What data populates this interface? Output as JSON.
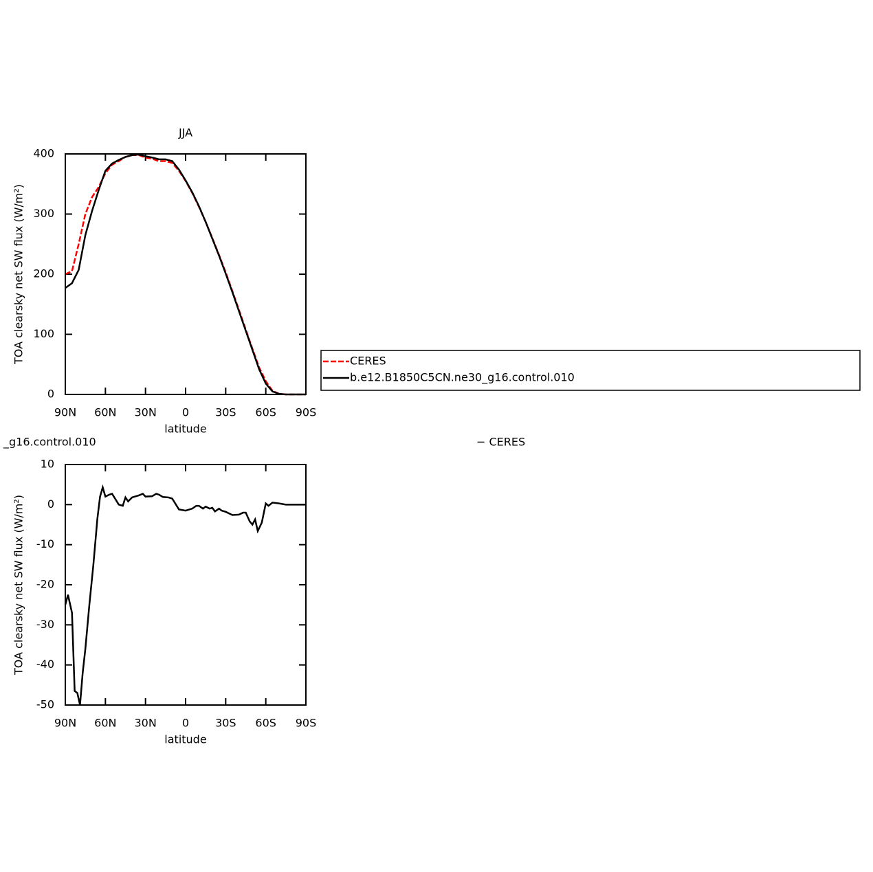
{
  "chart_data": [
    {
      "type": "line",
      "title": "JJA",
      "xlabel": "latitude",
      "ylabel": "TOA clearsky net SW flux (W/m²)",
      "x": [
        90,
        85,
        80,
        75,
        70,
        65,
        60,
        55,
        50,
        45,
        40,
        35,
        30,
        25,
        20,
        15,
        10,
        5,
        0,
        -5,
        -10,
        -15,
        -20,
        -25,
        -30,
        -35,
        -40,
        -45,
        -50,
        -55,
        -60,
        -65,
        -70,
        -75,
        -80,
        -85,
        -90
      ],
      "series": [
        {
          "name": "CERES",
          "color": "#ff0000",
          "linestyle": "dashed",
          "values": [
            200,
            205,
            250,
            300,
            328,
            345,
            368,
            382,
            388,
            395,
            398,
            398,
            394,
            392,
            388,
            388,
            385,
            372,
            355,
            335,
            312,
            287,
            260,
            232,
            203,
            172,
            140,
            108,
            76,
            45,
            22,
            6,
            1,
            0,
            0,
            0,
            0
          ]
        },
        {
          "name": "b.e12.B1850C5CN.ne30_g16.control.010",
          "color": "#000000",
          "linestyle": "solid",
          "values": [
            177,
            185,
            207,
            265,
            305,
            340,
            372,
            384,
            390,
            395,
            398,
            399,
            396,
            394,
            391,
            391,
            388,
            374,
            356,
            336,
            313,
            287,
            259,
            231,
            201,
            170,
            138,
            106,
            74,
            42,
            18,
            5,
            1,
            0,
            0,
            0,
            0
          ]
        }
      ],
      "xlim": [
        90,
        -90
      ],
      "xticks": [
        {
          "value": 90,
          "label": "90N"
        },
        {
          "value": 60,
          "label": "60N"
        },
        {
          "value": 30,
          "label": "30N"
        },
        0,
        {
          "value": -30,
          "label": "30S"
        },
        {
          "value": -60,
          "label": "60S"
        },
        {
          "value": -90,
          "label": "90S"
        }
      ],
      "ylim": [
        0,
        400
      ],
      "yticks": [
        0,
        100,
        200,
        300,
        400
      ],
      "legend": "right"
    },
    {
      "type": "line",
      "title_left": "_g16.control.010",
      "title_right": "− CERES",
      "xlabel": "latitude",
      "ylabel": "TOA clearsky net SW flux (W/m²)",
      "x": [
        90,
        88,
        85,
        83,
        81,
        79,
        77,
        75,
        72,
        69,
        66,
        64,
        62,
        60,
        57,
        55,
        50,
        47,
        45,
        43,
        40,
        35,
        32,
        30,
        25,
        22,
        20,
        17,
        13,
        10,
        5,
        0,
        -5,
        -8,
        -10,
        -13,
        -15,
        -18,
        -20,
        -22,
        -25,
        -27,
        -30,
        -35,
        -40,
        -43,
        -45,
        -48,
        -50,
        -52,
        -54,
        -57,
        -60,
        -62,
        -65,
        -70,
        -75,
        -90
      ],
      "values": [
        -25,
        -22.5,
        -27,
        -46.5,
        -47,
        -50,
        -42,
        -36,
        -25,
        -15,
        -3.5,
        2,
        4.3,
        2,
        2.5,
        2.7,
        0,
        -0.3,
        1.8,
        0.8,
        1.8,
        2.3,
        2.7,
        2,
        2.1,
        2.7,
        2.5,
        1.9,
        1.8,
        1.5,
        -1.2,
        -1.5,
        -1,
        -0.3,
        -0.3,
        -1,
        -0.5,
        -1,
        -0.8,
        -1.7,
        -1,
        -1.5,
        -1.8,
        -2.6,
        -2.5,
        -2,
        -2,
        -4.2,
        -5,
        -3.7,
        -6.6,
        -4.5,
        0.3,
        -0.3,
        0.5,
        0.3,
        0,
        0
      ],
      "color": "#000000",
      "xlim": [
        90,
        -90
      ],
      "xticks": [
        {
          "value": 90,
          "label": "90N"
        },
        {
          "value": 60,
          "label": "60N"
        },
        {
          "value": 30,
          "label": "30N"
        },
        0,
        {
          "value": -30,
          "label": "30S"
        },
        {
          "value": -60,
          "label": "60S"
        },
        {
          "value": -90,
          "label": "90S"
        }
      ],
      "ylim": [
        -50,
        10
      ],
      "yticks": [
        -50,
        -40,
        -30,
        -20,
        -10,
        0,
        10
      ]
    }
  ]
}
